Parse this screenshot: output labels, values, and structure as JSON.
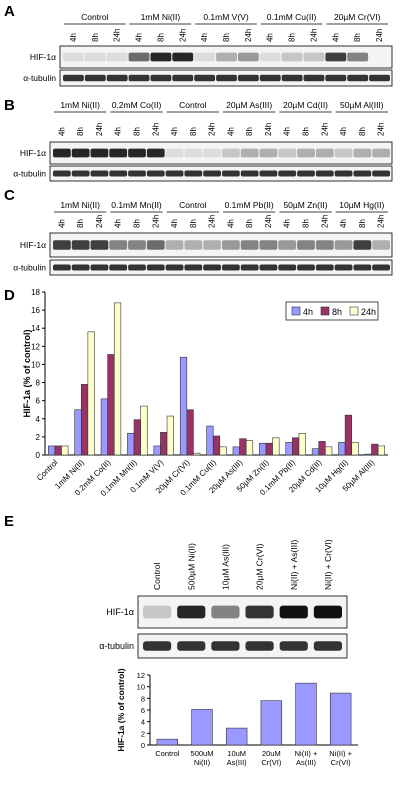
{
  "panels": {
    "A": {
      "letter": "A",
      "groups": [
        "Control",
        "1mM Ni(II)",
        "0.1mM V(V)",
        "0.1mM Cu(II)",
        "20µM Cr(VI)"
      ],
      "times": [
        "4h",
        "8h",
        "24h"
      ],
      "rows": [
        "HIF-1α",
        "α-tubulin"
      ]
    },
    "B": {
      "letter": "B",
      "groups": [
        "1mM Ni(II)",
        "0.2mM Co(II)",
        "Control",
        "20µM As(III)",
        "20µM Cd(II)",
        "50µM Al(III)"
      ],
      "times": [
        "4h",
        "8h",
        "24h"
      ],
      "rows": [
        "HIF-1α",
        "α-tubulin"
      ]
    },
    "C": {
      "letter": "C",
      "groups": [
        "1mM Ni(II)",
        "0.1mM Mn(II)",
        "Control",
        "0.1mM Pb(II)",
        "50µM Zn(II)",
        "10µM Hg(II)"
      ],
      "times": [
        "4h",
        "8h",
        "24h"
      ],
      "rows": [
        "HIF-1α",
        "α-tubulin"
      ]
    },
    "D": {
      "letter": "D"
    },
    "E": {
      "letter": "E",
      "lanes": [
        "Control",
        "500µM Ni(II)",
        "10µM As(III)",
        "20µM Cr(VI)",
        "Ni(II) + As(III)",
        "Ni(II) + Cr(VI)"
      ],
      "rows": [
        "HIF-1α",
        "α-tubulin"
      ]
    }
  },
  "chart_data": [
    {
      "type": "bar",
      "y_label": "HIF-1a (% of control)",
      "categories": [
        "Control",
        "1mM Ni(II)",
        "0.2mM Co(II)",
        "0.1mM Mn(II)",
        "0.1mM V(V)",
        "20µM Cr(VI)",
        "0.1mM Cu(II)",
        "20µM As(III)",
        "50µM Zn(II)",
        "0.1mM Pb(II)",
        "20µM Cd(II)",
        "10µM Hg(II)",
        "50µM Al(III)"
      ],
      "series": [
        {
          "name": "4h",
          "color": "#9999ff",
          "values": [
            1,
            5,
            6.2,
            2.4,
            1,
            10.8,
            3.2,
            0.9,
            1.3,
            1.4,
            0.7,
            1.4,
            0.1
          ]
        },
        {
          "name": "8h",
          "color": "#993366",
          "values": [
            1,
            7.8,
            11.1,
            3.9,
            2.5,
            5,
            2.1,
            1.8,
            1.3,
            1.9,
            1.5,
            4.4,
            1.2
          ]
        },
        {
          "name": "24h",
          "color": "#ffffcc",
          "values": [
            1,
            13.6,
            16.8,
            5.4,
            4.3,
            0.2,
            0.9,
            1.6,
            1.9,
            2.4,
            0.9,
            1.4,
            1.0
          ]
        }
      ],
      "ylim": [
        0,
        18
      ],
      "yticks": [
        0,
        2,
        4,
        6,
        8,
        10,
        12,
        14,
        16,
        18
      ],
      "legend": "upper right"
    },
    {
      "type": "bar",
      "y_label": "HIF-1a (% of control)",
      "categories": [
        [
          "Control"
        ],
        [
          "500uM",
          "Ni(II)"
        ],
        [
          "10uM",
          "As(III)"
        ],
        [
          "20uM",
          "Cr(VI)"
        ],
        [
          "Ni(II) +",
          "As(III)"
        ],
        [
          "Ni(II) +",
          "Cr(VI)"
        ]
      ],
      "values": [
        1,
        6.1,
        2.9,
        7.6,
        10.6,
        8.9
      ],
      "color": "#9999ff",
      "ylim": [
        0,
        12
      ],
      "yticks": [
        0,
        2,
        4,
        6,
        8,
        10,
        12
      ]
    }
  ]
}
